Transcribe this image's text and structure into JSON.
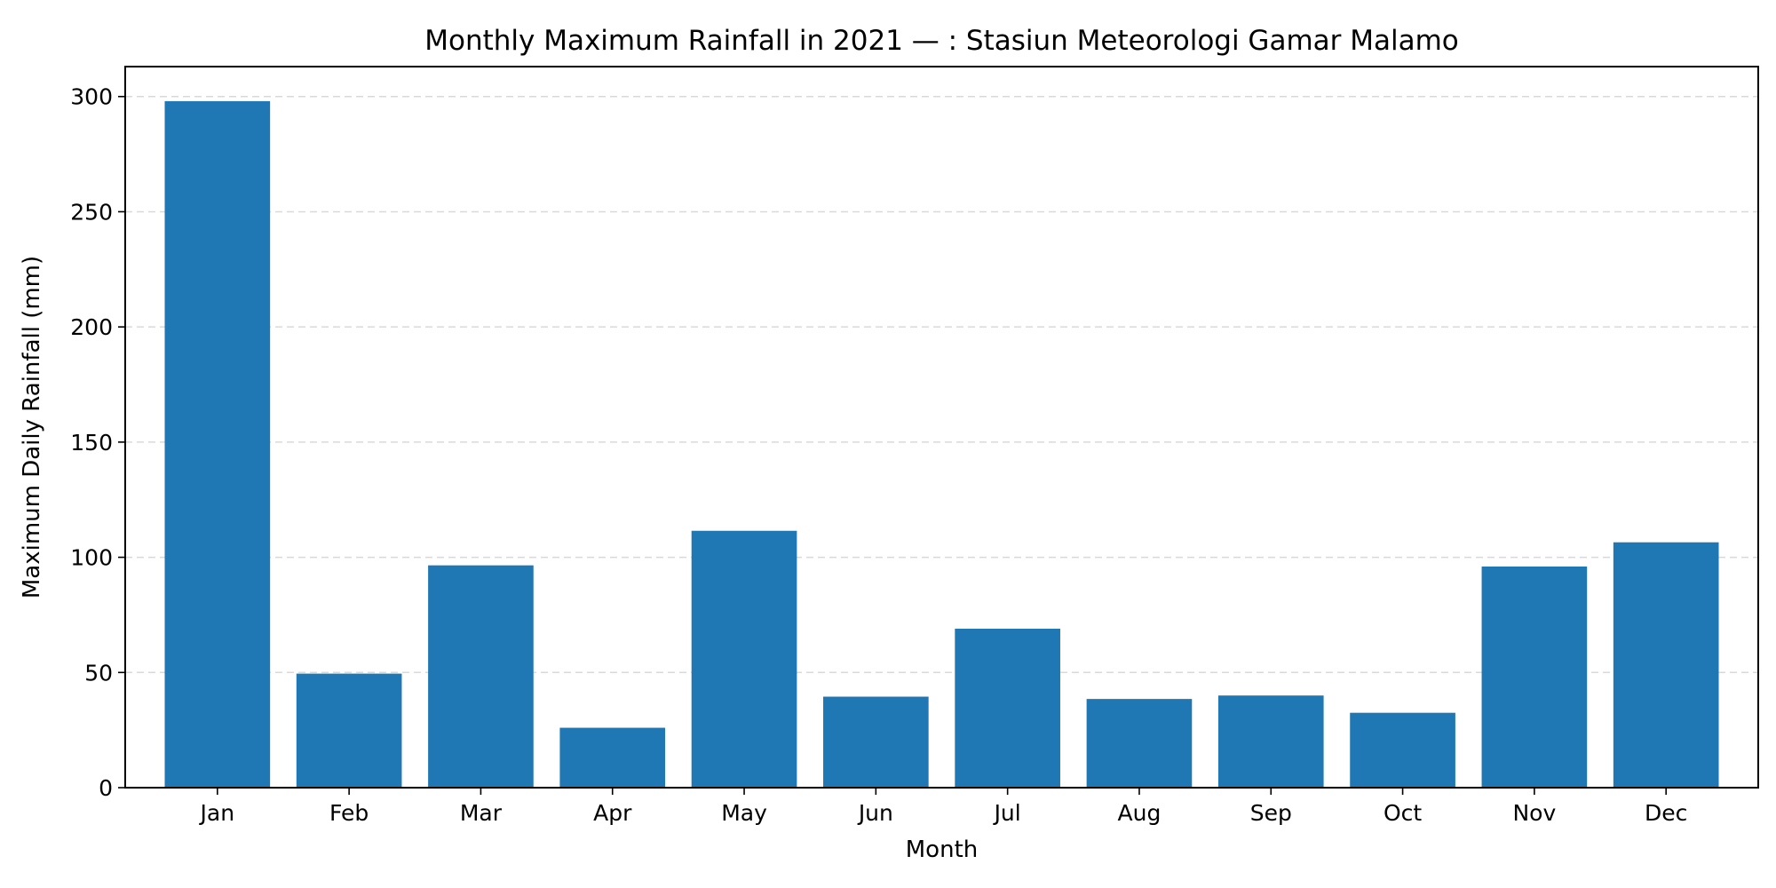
{
  "chart_data": {
    "type": "bar",
    "title": "Monthly Maximum Rainfall in 2021 — :  Stasiun Meteorologi Gamar Malamo",
    "xlabel": "Month",
    "ylabel": "Maximum Daily Rainfall (mm)",
    "categories": [
      "Jan",
      "Feb",
      "Mar",
      "Apr",
      "May",
      "Jun",
      "Jul",
      "Aug",
      "Sep",
      "Oct",
      "Nov",
      "Dec"
    ],
    "values": [
      298,
      49.5,
      96.5,
      26,
      111.5,
      39.5,
      69,
      38.5,
      40,
      32.5,
      96,
      106.5
    ],
    "ylim": [
      0,
      313
    ],
    "yticks": [
      0,
      50,
      100,
      150,
      200,
      250,
      300
    ],
    "grid": "y-dashed",
    "bar_color": "#1f77b4"
  }
}
